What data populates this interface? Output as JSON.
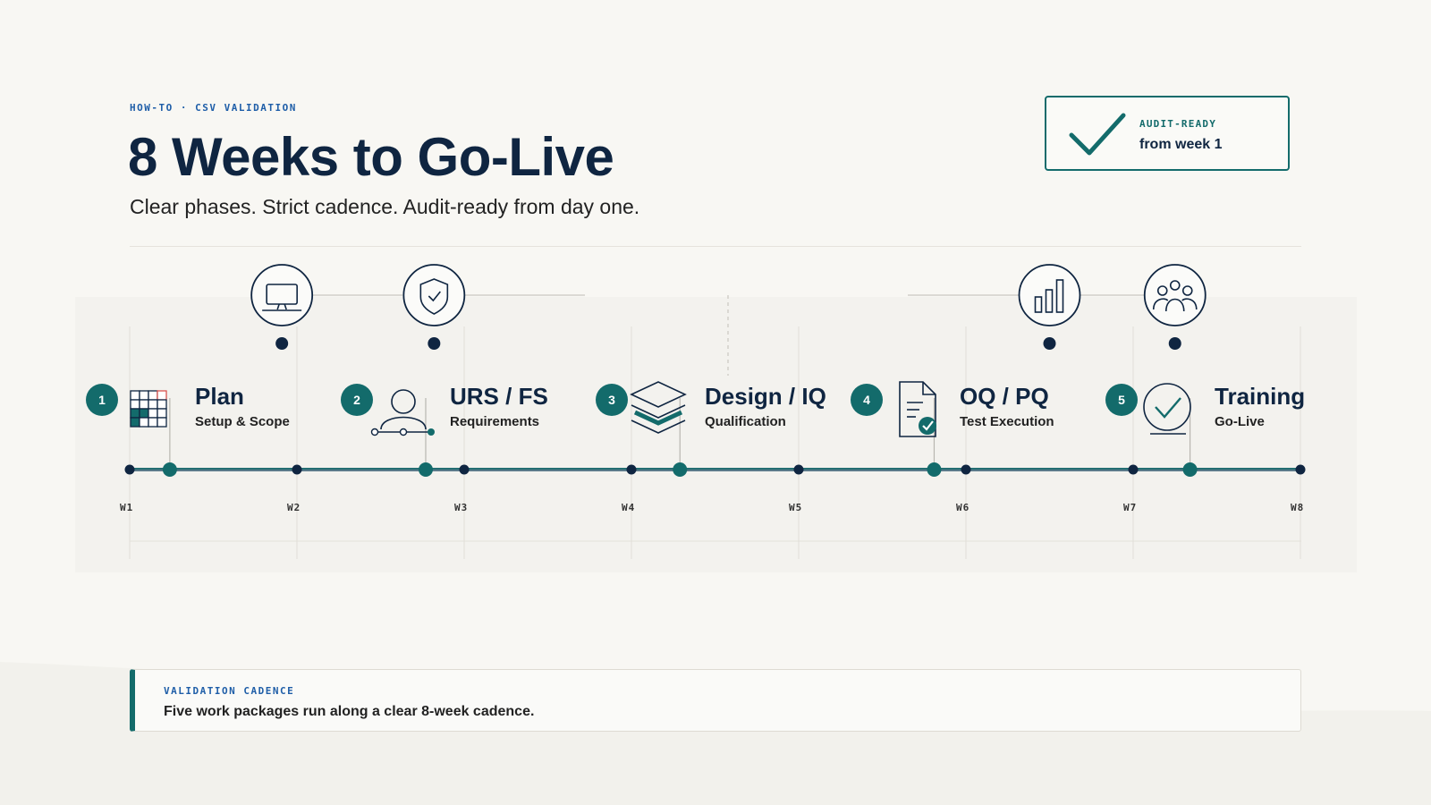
{
  "header": {
    "eyebrow": "HOW-TO · CSV VALIDATION",
    "title": "8 Weeks to Go-Live",
    "subtitle": "Clear phases. Strict cadence. Audit-ready from day one."
  },
  "audit_card": {
    "label": "AUDIT-READY",
    "value": "from week 1",
    "icon": "check-icon"
  },
  "timeline": {
    "weeks": [
      "W1",
      "W2",
      "W3",
      "W4",
      "W5",
      "W6",
      "W7",
      "W8"
    ],
    "phases": [
      {
        "number": "1",
        "title": "Plan",
        "subtitle": "Setup & Scope",
        "icon": "grid-icon",
        "milestone_week": 1.24
      },
      {
        "number": "2",
        "title": "URS / FS",
        "subtitle": "Requirements",
        "icon": "user-network-icon",
        "milestone_week": 2.77
      },
      {
        "number": "3",
        "title": "Design / IQ",
        "subtitle": "Qualification",
        "icon": "layers-icon",
        "milestone_week": 4.29
      },
      {
        "number": "4",
        "title": "OQ / PQ",
        "subtitle": "Test Execution",
        "icon": "document-check-icon",
        "milestone_week": 5.81
      },
      {
        "number": "5",
        "title": "Training",
        "subtitle": "Go-Live",
        "icon": "check-circle-icon",
        "milestone_week": 7.34
      }
    ],
    "top_markers": [
      {
        "icon": "monitor-icon",
        "week": 1.91
      },
      {
        "icon": "shield-check-icon",
        "week": 2.82
      },
      {
        "icon": "bar-chart-icon",
        "week": 6.5
      },
      {
        "icon": "people-icon",
        "week": 7.25
      }
    ],
    "accent_color": "#136b6b",
    "navy_color": "#0f2541"
  },
  "note": {
    "label": "VALIDATION CADENCE",
    "text": "Five work packages run along a clear 8-week cadence."
  }
}
